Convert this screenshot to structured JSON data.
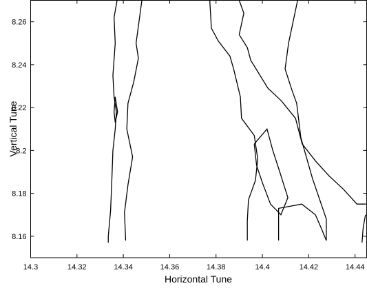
{
  "chart_data": {
    "type": "contour",
    "xlabel": "Horizontal Tune",
    "ylabel": "Vertical Tune",
    "xlim": [
      14.3,
      14.445
    ],
    "ylim": [
      8.15,
      8.27
    ],
    "xticks": [
      14.3,
      14.32,
      14.34,
      14.36,
      14.38,
      14.4,
      14.42,
      14.44
    ],
    "yticks": [
      8.16,
      8.18,
      8.2,
      8.22,
      8.24,
      8.26
    ],
    "color": "#000000",
    "series": [
      {
        "x": [
          14.3373,
          14.336,
          14.3365,
          14.3355,
          14.336,
          14.337,
          14.3365,
          14.3355,
          14.335,
          14.3345,
          14.3335,
          14.3335
        ],
        "y": [
          8.27,
          8.262,
          8.25,
          8.235,
          8.225,
          8.218,
          8.21,
          8.2,
          8.185,
          8.172,
          8.16,
          8.157
        ]
      },
      {
        "x": [
          14.348,
          14.347,
          14.3455,
          14.3465,
          14.3445,
          14.342,
          14.3415,
          14.344,
          14.342,
          14.3405,
          14.341
        ],
        "y": [
          8.27,
          8.262,
          8.25,
          8.243,
          8.232,
          8.222,
          8.21,
          8.197,
          8.184,
          8.171,
          8.158
        ]
      },
      {
        "x": [
          14.3365,
          14.3375,
          14.3365,
          14.336,
          14.3365
        ],
        "y": [
          8.225,
          8.218,
          8.213,
          8.218,
          8.225
        ]
      },
      {
        "x": [
          14.3773,
          14.378,
          14.381,
          14.386,
          14.3876,
          14.3905,
          14.391,
          14.3965,
          14.398,
          14.397,
          14.394,
          14.3935,
          14.3935
        ],
        "y": [
          8.27,
          8.257,
          8.251,
          8.244,
          8.238,
          8.225,
          8.215,
          8.207,
          8.196,
          8.186,
          8.177,
          8.167,
          8.158
        ]
      },
      {
        "x": [
          14.39,
          14.392,
          14.39,
          14.3935,
          14.395,
          14.4024,
          14.4054,
          14.4083,
          14.4143,
          14.4172,
          14.423,
          14.4289,
          14.4349,
          14.4408,
          14.4447
        ],
        "y": [
          8.27,
          8.264,
          8.254,
          8.248,
          8.242,
          8.229,
          8.226,
          8.223,
          8.215,
          8.203,
          8.195,
          8.188,
          8.182,
          8.175,
          8.175
        ]
      },
      {
        "x": [
          14.3965,
          14.402,
          14.4045,
          14.4075,
          14.411,
          14.408,
          14.4035,
          14.4,
          14.3975,
          14.3965
        ],
        "y": [
          8.203,
          8.21,
          8.2,
          8.19,
          8.178,
          8.17,
          8.175,
          8.185,
          8.193,
          8.203
        ]
      },
      {
        "x": [
          14.4152,
          14.4113,
          14.4098,
          14.4128,
          14.4148,
          14.4166,
          14.4216,
          14.4276,
          14.4276
        ],
        "y": [
          8.27,
          8.25,
          8.238,
          8.228,
          8.222,
          8.206,
          8.187,
          8.168,
          8.158
        ]
      },
      {
        "x": [
          14.407,
          14.407,
          14.417,
          14.4229,
          14.4253,
          14.4276
        ],
        "y": [
          8.158,
          8.173,
          8.175,
          8.17,
          8.164,
          8.158
        ]
      },
      {
        "x": [
          14.443,
          14.4435,
          14.4445
        ],
        "y": [
          8.157,
          8.164,
          8.17
        ]
      }
    ]
  }
}
